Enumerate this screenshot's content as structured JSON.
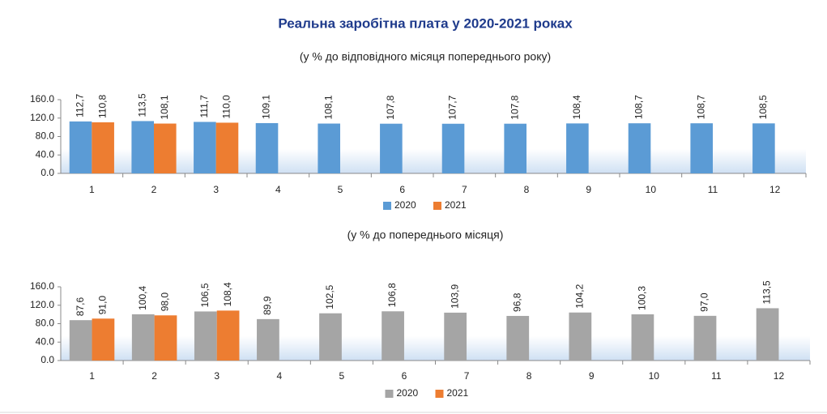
{
  "chart_data": [
    {
      "type": "bar",
      "title": "Реальна заробітна плата у 2020-2021 роках",
      "subtitle": "(у % до відповідного місяця попереднього року)",
      "categories": [
        "1",
        "2",
        "3",
        "4",
        "5",
        "6",
        "7",
        "8",
        "9",
        "10",
        "11",
        "12"
      ],
      "series": [
        {
          "name": "2020",
          "color": "#5b9bd5",
          "values": [
            112.7,
            113.5,
            111.7,
            109.1,
            108.1,
            107.8,
            107.7,
            107.8,
            108.4,
            108.7,
            108.7,
            108.5
          ],
          "value_labels": [
            "112,7",
            "113,5",
            "111,7",
            "109,1",
            "108,1",
            "107,8",
            "107,7",
            "107,8",
            "108,4",
            "108,7",
            "108,7",
            "108,5"
          ]
        },
        {
          "name": "2021",
          "color": "#ed7d31",
          "values": [
            110.8,
            108.1,
            110.0,
            null,
            null,
            null,
            null,
            null,
            null,
            null,
            null,
            null
          ],
          "value_labels": [
            "110,8",
            "108,1",
            "110,0",
            null,
            null,
            null,
            null,
            null,
            null,
            null,
            null,
            null
          ]
        }
      ],
      "ylim": [
        0,
        160
      ],
      "yticks": [
        {
          "value": 0,
          "label": "0.0"
        },
        {
          "value": 40,
          "label": "40.0"
        },
        {
          "value": 80,
          "label": "80.0"
        },
        {
          "value": 120,
          "label": "120.0"
        },
        {
          "value": 160,
          "label": "160.0"
        }
      ],
      "grid": false,
      "legend": "bottom"
    },
    {
      "type": "bar",
      "subtitle": "(у % до попереднього місяця)",
      "categories": [
        "1",
        "2",
        "3",
        "4",
        "5",
        "6",
        "7",
        "8",
        "9",
        "10",
        "11",
        "12"
      ],
      "series": [
        {
          "name": "2020",
          "color": "#a5a5a5",
          "values": [
            87.6,
            100.4,
            106.5,
            89.9,
            102.5,
            106.8,
            103.9,
            96.8,
            104.2,
            100.3,
            97.0,
            113.5
          ],
          "value_labels": [
            "87,6",
            "100,4",
            "106,5",
            "89,9",
            "102,5",
            "106,8",
            "103,9",
            "96,8",
            "104,2",
            "100,3",
            "97,0",
            "113,5"
          ]
        },
        {
          "name": "2021",
          "color": "#ed7d31",
          "values": [
            91.0,
            98.0,
            108.4,
            null,
            null,
            null,
            null,
            null,
            null,
            null,
            null,
            null
          ],
          "value_labels": [
            "91,0",
            "98,0",
            "108,4",
            null,
            null,
            null,
            null,
            null,
            null,
            null,
            null,
            null
          ]
        }
      ],
      "ylim": [
        0,
        160
      ],
      "yticks": [
        {
          "value": 0,
          "label": "0.0"
        },
        {
          "value": 40,
          "label": "40.0"
        },
        {
          "value": 80,
          "label": "80.0"
        },
        {
          "value": 120,
          "label": "120.0"
        },
        {
          "value": 160,
          "label": "160.0"
        }
      ],
      "grid": false,
      "legend": "bottom"
    }
  ]
}
